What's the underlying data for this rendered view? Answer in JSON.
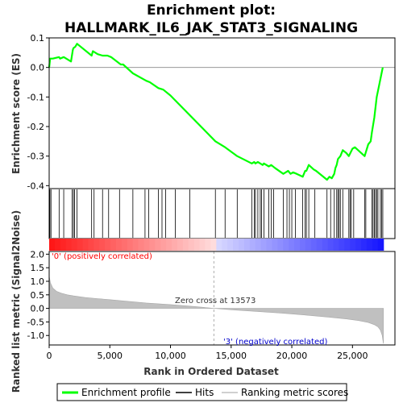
{
  "chart_data": {
    "type": "line",
    "title_lines": [
      "Enrichment plot:",
      "HALLMARK_IL6_JAK_STAT3_SIGNALING"
    ],
    "xlabel": "Rank in Ordered Dataset",
    "xlim": [
      0,
      28500
    ],
    "x_ticks": [
      0,
      5000,
      10000,
      15000,
      20000,
      25000
    ],
    "x_tick_labels": [
      "0",
      "5,000",
      "10,000",
      "15,000",
      "20,000",
      "25,000"
    ],
    "es_panel": {
      "ylabel": "Enrichment score (ES)",
      "ylim": [
        -0.41,
        0.1
      ],
      "y_ticks": [
        0.1,
        0.0,
        -0.1,
        -0.2,
        -0.3,
        -0.4
      ],
      "y_tick_labels": [
        "0.1",
        "0.0",
        "-0.1",
        "-0.2",
        "-0.3",
        "-0.4"
      ],
      "color": "#00ff00",
      "series": [
        {
          "name": "Enrichment profile",
          "x": [
            0,
            80,
            300,
            820,
            900,
            1200,
            1800,
            1950,
            2000,
            2150,
            2300,
            3500,
            3600,
            3800,
            4000,
            4400,
            4800,
            5100,
            5900,
            6100,
            6900,
            8000,
            8300,
            9000,
            9400,
            10000,
            13700,
            14500,
            15500,
            16700,
            16900,
            17000,
            17200,
            17400,
            17600,
            17700,
            18100,
            18300,
            18600,
            19300,
            19500,
            19700,
            19900,
            20100,
            20400,
            20900,
            21100,
            21200,
            21400,
            21800,
            22000,
            22900,
            23100,
            23300,
            23500,
            23600,
            23700,
            23800,
            24000,
            24200,
            24500,
            24700,
            25000,
            25200,
            26000,
            26300,
            26500,
            26600,
            26800,
            27000,
            27200,
            27400,
            27500
          ],
          "y": [
            0.0,
            0.03,
            0.03,
            0.035,
            0.03,
            0.035,
            0.02,
            0.06,
            0.065,
            0.07,
            0.08,
            0.04,
            0.055,
            0.05,
            0.045,
            0.04,
            0.04,
            0.035,
            0.01,
            0.01,
            -0.02,
            -0.045,
            -0.05,
            -0.07,
            -0.075,
            -0.095,
            -0.25,
            -0.27,
            -0.3,
            -0.325,
            -0.32,
            -0.325,
            -0.32,
            -0.325,
            -0.33,
            -0.325,
            -0.335,
            -0.33,
            -0.34,
            -0.36,
            -0.355,
            -0.35,
            -0.36,
            -0.355,
            -0.36,
            -0.37,
            -0.35,
            -0.35,
            -0.33,
            -0.345,
            -0.35,
            -0.38,
            -0.37,
            -0.375,
            -0.36,
            -0.34,
            -0.33,
            -0.31,
            -0.3,
            -0.28,
            -0.29,
            -0.3,
            -0.275,
            -0.27,
            -0.3,
            -0.26,
            -0.25,
            -0.22,
            -0.17,
            -0.1,
            -0.06,
            -0.02,
            0.0
          ]
        }
      ]
    },
    "hits": [
      60,
      150,
      820,
      1200,
      1900,
      2000,
      2100,
      2300,
      3500,
      3700,
      4400,
      4900,
      5800,
      6900,
      7900,
      8200,
      9000,
      9300,
      9600,
      10400,
      11600,
      13700,
      14500,
      15500,
      16700,
      16900,
      17000,
      17200,
      17400,
      17500,
      17700,
      18100,
      18300,
      18500,
      19300,
      19600,
      19800,
      20000,
      20300,
      20900,
      21100,
      21200,
      21400,
      21900,
      22900,
      23200,
      23500,
      23700,
      23800,
      23900,
      24000,
      24200,
      24700,
      24800,
      24900,
      25100,
      26000,
      26100,
      26600,
      26700,
      26800,
      26900,
      27000,
      27100,
      27300,
      27400,
      27500
    ],
    "ranking_panel": {
      "ylabel": "Ranked list metric (Signal2Noise)",
      "ylim": [
        -1.35,
        2.1
      ],
      "y_ticks": [
        2.0,
        1.5,
        1.0,
        0.5,
        0.0,
        -0.5,
        -1.0
      ],
      "y_tick_labels": [
        "2.0",
        "1.5",
        "1.0",
        "0.5",
        "0.0",
        "-0.5",
        "-1.0"
      ],
      "x": [
        0,
        100,
        300,
        600,
        1000,
        1500,
        2000,
        3000,
        4000,
        5000,
        6000,
        8000,
        10000,
        12000,
        13573,
        15000,
        17000,
        19000,
        21000,
        23000,
        24500,
        25500,
        26300,
        26800,
        27100,
        27300,
        27450,
        27550
      ],
      "values": [
        1.2,
        0.95,
        0.75,
        0.63,
        0.56,
        0.5,
        0.46,
        0.4,
        0.36,
        0.32,
        0.28,
        0.2,
        0.14,
        0.07,
        0.0,
        -0.05,
        -0.11,
        -0.17,
        -0.24,
        -0.32,
        -0.39,
        -0.45,
        -0.52,
        -0.6,
        -0.68,
        -0.8,
        -1.0,
        -1.3
      ],
      "zero_cross_label": "Zero cross at 13573",
      "zero_cross": 13573,
      "pos_label": "'0' (positively correlated)",
      "neg_label": "'3' (negatively correlated)"
    },
    "legend": {
      "placement": "bottom",
      "items": [
        {
          "label": "Enrichment profile",
          "color": "#00ff00"
        },
        {
          "label": "Hits",
          "color": "#000000"
        },
        {
          "label": "Ranking metric scores",
          "color": "#c0c0c0"
        }
      ]
    }
  }
}
